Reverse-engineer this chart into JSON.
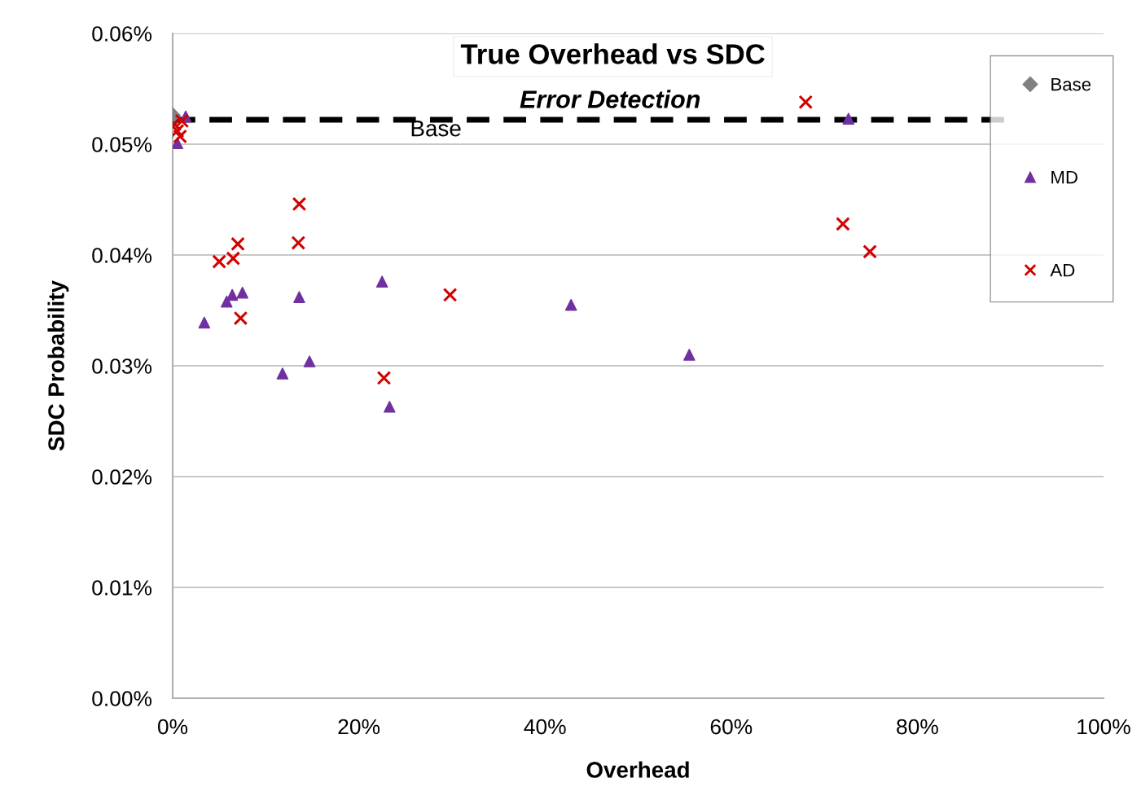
{
  "chart_data": {
    "type": "scatter",
    "title": "True Overhead vs SDC",
    "subtitle": "Error Detection",
    "xlabel": "Overhead",
    "ylabel": "SDC Probability",
    "series": [
      {
        "name": "Base",
        "color": "#808080",
        "marker": "diamond",
        "x": [
          0
        ],
        "values": [
          0.0526
        ]
      },
      {
        "name": "MD",
        "color": "#7030a0",
        "marker": "triangle",
        "x": [
          1.4,
          0.5,
          3.4,
          5.8,
          6.4,
          7.5,
          11.8,
          13.6,
          14.7,
          22.5,
          23.3,
          42.8,
          55.5,
          72.6
        ],
        "values": [
          0.0525,
          0.0501,
          0.0339,
          0.0358,
          0.0364,
          0.0366,
          0.0293,
          0.0362,
          0.0304,
          0.0376,
          0.0263,
          0.0355,
          0.031,
          0.0523
        ]
      },
      {
        "name": "AD",
        "color": "#d40000",
        "marker": "cross",
        "x": [
          0.2,
          0.5,
          0.8,
          1.0,
          5.0,
          6.5,
          7.0,
          7.3,
          13.5,
          13.6,
          22.7,
          29.8,
          68.0,
          72.0,
          74.9
        ],
        "values": [
          0.0518,
          0.0512,
          0.0507,
          0.0521,
          0.0394,
          0.0397,
          0.041,
          0.0343,
          0.0411,
          0.0446,
          0.0289,
          0.0364,
          0.0538,
          0.0428,
          0.0403
        ]
      }
    ],
    "ref_lines": [
      {
        "axis": "y",
        "value": 0.0522,
        "label": "Base",
        "color": "#000000",
        "line_style": "dashed"
      }
    ],
    "xlim": [
      0,
      100
    ],
    "ylim": [
      0,
      0.06
    ],
    "xticks": [
      {
        "value": 0,
        "label": "0%"
      },
      {
        "value": 20,
        "label": "20%"
      },
      {
        "value": 40,
        "label": "40%"
      },
      {
        "value": 60,
        "label": "60%"
      },
      {
        "value": 80,
        "label": "80%"
      },
      {
        "value": 100,
        "label": "100%"
      }
    ],
    "yticks": [
      {
        "value": 0,
        "label": "0.00%"
      },
      {
        "value": 0.01,
        "label": "0.01%"
      },
      {
        "value": 0.02,
        "label": "0.02%"
      },
      {
        "value": 0.03,
        "label": "0.03%"
      },
      {
        "value": 0.04,
        "label": "0.04%"
      },
      {
        "value": 0.05,
        "label": "0.05%"
      },
      {
        "value": 0.06,
        "label": "0.06%"
      }
    ],
    "grid": "y",
    "legend": "right"
  }
}
